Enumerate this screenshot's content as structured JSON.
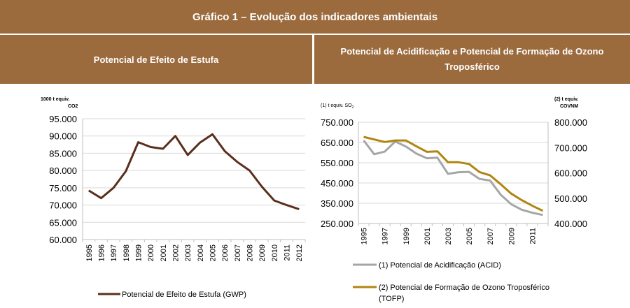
{
  "header": {
    "title": "Gráfico 1 – Evolução dos indicadores ambientais",
    "left_subtitle": "Potencial de Efeito de Estufa",
    "right_subtitle": "Potencial de Acidificação e Potencial de Formação de Ozono Troposférico"
  },
  "colors": {
    "banner": "#9b6a3d",
    "gwp": "#5a2f1c",
    "acid": "#a6a6a6",
    "tofp": "#b08510"
  },
  "chart_data": [
    {
      "type": "line",
      "unit_label_1": "1000 t equiv.",
      "unit_label_2": "CO2",
      "x": [
        "1995",
        "1996",
        "1997",
        "1998",
        "1999",
        "2000",
        "2001",
        "2002",
        "2003",
        "2004",
        "2005",
        "2006",
        "2007",
        "2008",
        "2009",
        "2010",
        "2011",
        "2012"
      ],
      "series": [
        {
          "name": "Potencial de Efeito de Estufa (GWP)",
          "values": [
            74200,
            72000,
            75000,
            79800,
            88200,
            86800,
            86300,
            90000,
            84500,
            88100,
            90500,
            85600,
            82500,
            80000,
            75300,
            71300,
            70000,
            68800
          ]
        }
      ],
      "ylim": [
        60000,
        95000
      ],
      "yticks": [
        "60.000",
        "65.000",
        "70.000",
        "75.000",
        "80.000",
        "85.000",
        "90.000",
        "95.000"
      ],
      "xtick_labels": [
        "1995",
        "1996",
        "1997",
        "1998",
        "1999",
        "2000",
        "2001",
        "2002",
        "2003",
        "2004",
        "2005",
        "2006",
        "2007",
        "2008",
        "2009",
        "2010",
        "2011",
        "2012"
      ],
      "grid": true,
      "legend": "bottom"
    },
    {
      "type": "line",
      "left_unit_label": "(1) t equiv. SO",
      "left_unit_sub": "2",
      "right_unit_label_1": "(2) t equiv.",
      "right_unit_label_2": "COVNM",
      "x": [
        "1995",
        "1996",
        "1997",
        "1998",
        "1999",
        "2000",
        "2001",
        "2002",
        "2003",
        "2004",
        "2005",
        "2006",
        "2007",
        "2008",
        "2009",
        "2010",
        "2011",
        "2012"
      ],
      "series": [
        {
          "name": "(1) Potencial de Acidificação (ACID)",
          "axis": "left",
          "values": [
            660000,
            592000,
            605000,
            655000,
            630000,
            595000,
            572000,
            575000,
            495000,
            503000,
            505000,
            470000,
            462000,
            392000,
            345000,
            318000,
            303000,
            292000
          ]
        },
        {
          "name_line1": "(2) Potencial de Formação de Ozono Troposférico",
          "name_line2": "(TOFP)",
          "axis": "right",
          "values": [
            742000,
            732000,
            722000,
            728000,
            728000,
            705000,
            683000,
            685000,
            642000,
            642000,
            635000,
            603000,
            590000,
            555000,
            518000,
            492000,
            470000,
            450000
          ]
        }
      ],
      "ylim_left": [
        250000,
        750000
      ],
      "ylim_right": [
        400000,
        800000
      ],
      "yticks_left": [
        "250.000",
        "350.000",
        "450.000",
        "550.000",
        "650.000",
        "750.000"
      ],
      "yticks_right": [
        "400.000",
        "500.000",
        "600.000",
        "700.000",
        "800.000"
      ],
      "xtick_labels": [
        "1995",
        "1997",
        "1999",
        "2001",
        "2003",
        "2005",
        "2007",
        "2009",
        "2011"
      ],
      "grid": true,
      "legend": "bottom"
    }
  ]
}
